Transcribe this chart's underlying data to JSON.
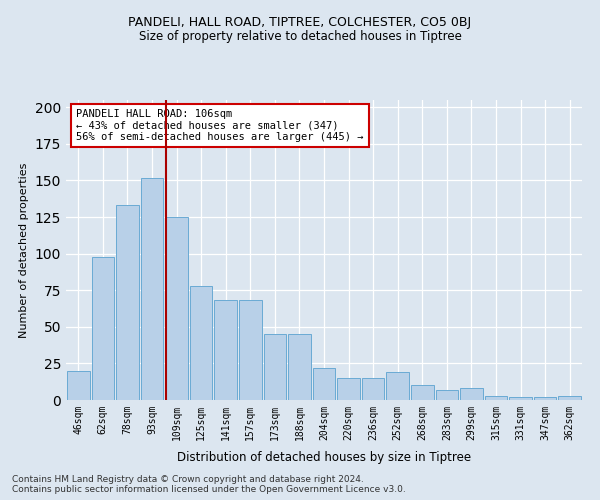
{
  "title1": "PANDELI, HALL ROAD, TIPTREE, COLCHESTER, CO5 0BJ",
  "title2": "Size of property relative to detached houses in Tiptree",
  "xlabel": "Distribution of detached houses by size in Tiptree",
  "ylabel": "Number of detached properties",
  "categories": [
    "46sqm",
    "62sqm",
    "78sqm",
    "93sqm",
    "109sqm",
    "125sqm",
    "141sqm",
    "157sqm",
    "173sqm",
    "188sqm",
    "204sqm",
    "220sqm",
    "236sqm",
    "252sqm",
    "268sqm",
    "283sqm",
    "299sqm",
    "315sqm",
    "331sqm",
    "347sqm",
    "362sqm"
  ],
  "values": [
    20,
    98,
    133,
    152,
    125,
    78,
    68,
    68,
    45,
    45,
    22,
    15,
    15,
    19,
    10,
    7,
    8,
    3,
    2,
    2,
    3
  ],
  "bar_color": "#b8d0e8",
  "bar_edgecolor": "#6aaad4",
  "vline_position": 3.57,
  "vline_color": "#aa0000",
  "annotation_text": "PANDELI HALL ROAD: 106sqm\n← 43% of detached houses are smaller (347)\n56% of semi-detached houses are larger (445) →",
  "annotation_box_facecolor": "#ffffff",
  "annotation_box_edgecolor": "#cc0000",
  "footer": "Contains HM Land Registry data © Crown copyright and database right 2024.\nContains public sector information licensed under the Open Government Licence v3.0.",
  "ylim_max": 205,
  "bg_color": "#dce6f0",
  "grid_color": "#ffffff"
}
